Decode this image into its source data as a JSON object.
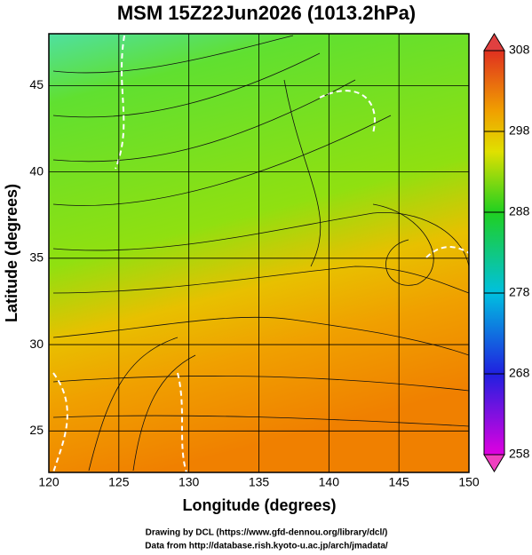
{
  "map": {
    "title": "MSM 15Z22Jun2026 (1013.2hPa)",
    "x_label": "Longitude (degrees)",
    "y_label": "Latitude  (degrees)",
    "xlim": [
      120,
      150
    ],
    "xticks": [
      120,
      125,
      130,
      135,
      140,
      145,
      150
    ],
    "ylim": [
      22.6,
      48
    ],
    "yticks": [
      25,
      30,
      35,
      40,
      45
    ],
    "colorbar": {
      "lim": [
        258,
        308
      ],
      "ticks": [
        258,
        268,
        278,
        288,
        298,
        308
      ]
    },
    "credits": [
      "Drawing by DCL (https://www.gfd-dennou.org/library/dcl/)",
      "Data from http://database.rish.kyoto-u.ac.jp/arch/jmadata/"
    ]
  }
}
